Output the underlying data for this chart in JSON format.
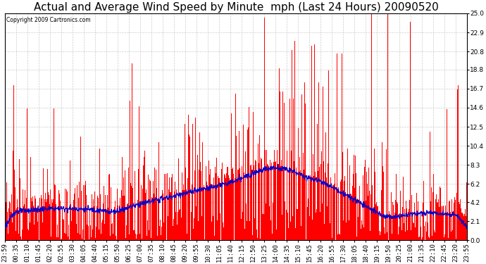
{
  "title": "Actual and Average Wind Speed by Minute  mph (Last 24 Hours) 20090520",
  "copyright": "Copyright 2009 Cartronics.com",
  "yticks": [
    0.0,
    2.1,
    4.2,
    6.2,
    8.3,
    10.4,
    12.5,
    14.6,
    16.7,
    18.8,
    20.8,
    22.9,
    25.0
  ],
  "ymin": 0.0,
  "ymax": 25.0,
  "bar_color": "#ff0000",
  "line_color": "#0000cc",
  "background_color": "#ffffff",
  "grid_color": "#cccccc",
  "title_fontsize": 11,
  "tick_label_fontsize": 6.5,
  "n_minutes": 1440,
  "x_tick_labels": [
    "23:59",
    "00:35",
    "01:10",
    "01:45",
    "02:20",
    "02:55",
    "03:30",
    "04:05",
    "04:40",
    "05:15",
    "05:50",
    "06:25",
    "07:00",
    "07:35",
    "08:10",
    "08:45",
    "09:20",
    "09:55",
    "10:30",
    "11:05",
    "11:40",
    "12:15",
    "12:50",
    "13:25",
    "14:00",
    "14:35",
    "15:10",
    "15:45",
    "16:20",
    "16:55",
    "17:30",
    "18:05",
    "18:40",
    "19:15",
    "19:50",
    "20:25",
    "21:00",
    "21:35",
    "22:10",
    "22:45",
    "23:20",
    "23:55"
  ]
}
